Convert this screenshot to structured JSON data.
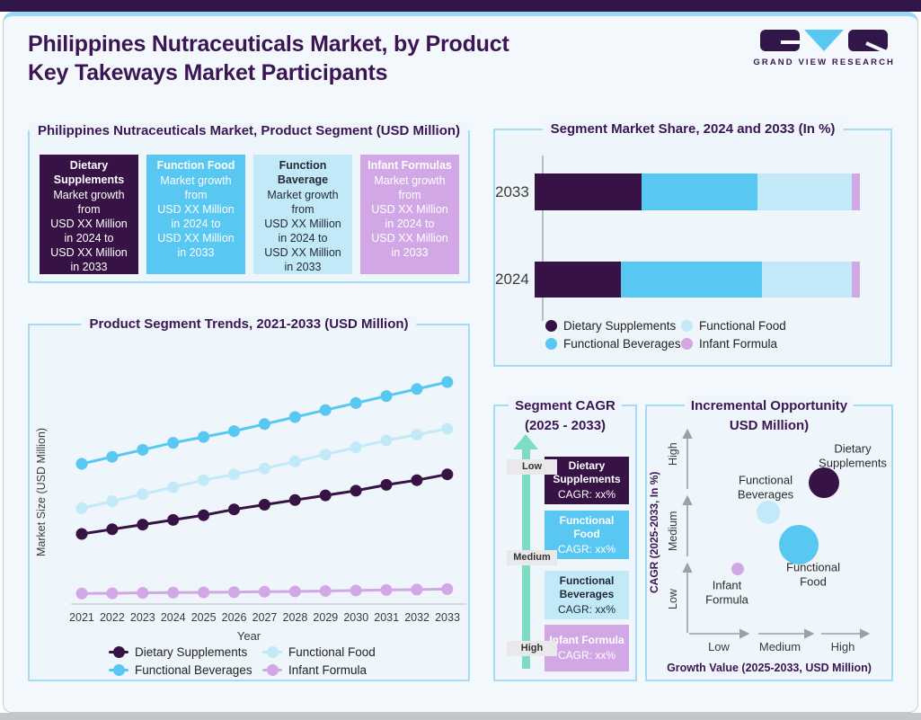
{
  "page": {
    "title_line1": "Philippines Nutraceuticals Market, by Product",
    "title_line2": "Key Takeways Market Participants",
    "logo_text": "GRAND VIEW RESEARCH"
  },
  "colors": {
    "dark_purple": "#361245",
    "blue": "#58c7f1",
    "light_blue": "#c2e9f8",
    "light_purple": "#d2a7e5",
    "teal": "#7edcc4",
    "heading_purple": "#3b1653",
    "panel_border": "#a5dcf4"
  },
  "segment_panel": {
    "title": "Philippines Nutraceuticals Market, Product Segment (USD Million)",
    "boxes": [
      {
        "name": "Dietary\nSupplements",
        "body": "Market growth\nfrom\nUSD XX Million\nin 2024 to\nUSD XX Million\nin 2033",
        "color_key": "dark_purple"
      },
      {
        "name": "Function Food",
        "body": "Market growth\nfrom\nUSD XX Million\nin 2024 to\nUSD XX Million\nin 2033",
        "color_key": "blue"
      },
      {
        "name": "Function Baverage",
        "body": "Market growth\nfrom\nUSD XX Million\nin 2024 to\nUSD XX Million\nin 2033",
        "color_key": "light_blue"
      },
      {
        "name": "Infant Formulas",
        "body": "Market growth\nfrom\nUSD XX Million\nin 2024 to\nUSD XX Million\nin 2033",
        "color_key": "light_purple"
      }
    ]
  },
  "trends_panel": {
    "title": "Product Segment Trends, 2021-2033 (USD Million)"
  },
  "share_panel": {
    "title": "Segment Market Share, 2024 and 2033 (In %)"
  },
  "cagr_panel": {
    "title_line1": "Segment CAGR",
    "title_line2": "(2025 - 2033)",
    "axis_labels": [
      "Low",
      "Medium",
      "High"
    ],
    "boxes": [
      {
        "name": "Dietary\nSupplements",
        "cagr": "CAGR: xx%",
        "color_key": "dark_purple"
      },
      {
        "name": "Functional\nFood",
        "cagr": "CAGR: xx%",
        "color_key": "blue"
      },
      {
        "name": "Functional\nBeverages",
        "cagr": "CAGR: xx%",
        "color_key": "light_blue"
      },
      {
        "name": "Infant Formula",
        "cagr": "CAGR: xx%",
        "color_key": "light_purple"
      }
    ]
  },
  "opportunity_panel": {
    "title_line1": "Incremental Opportunity",
    "title_line2": "USD Million)",
    "xlabel": "Growth Value (2025-2033, USD Million)",
    "ylabel": "CAGR (2025-2033, In %)",
    "x_zone_labels": [
      "Low",
      "Medium",
      "High"
    ],
    "y_zone_labels": [
      "Low",
      "Medium",
      "High"
    ]
  },
  "chart_data": [
    {
      "id": "trends",
      "type": "line",
      "title": "Product Segment Trends, 2021-2033 (USD Million)",
      "xlabel": "Year",
      "ylabel": "Market Size (USD Million)",
      "categories": [
        "2021",
        "2022",
        "2023",
        "2024",
        "2025",
        "2026",
        "2027",
        "2028",
        "2029",
        "2030",
        "2031",
        "2032",
        "2033"
      ],
      "ylim": [
        0,
        100
      ],
      "grid": false,
      "legend_position": "bottom",
      "series": [
        {
          "name": "Dietary Supplements",
          "color": "#361245",
          "values": [
            30,
            32,
            34,
            36,
            38,
            40.5,
            42.5,
            44.5,
            46.5,
            48.5,
            51,
            53,
            55.5
          ]
        },
        {
          "name": "Functional Food",
          "color": "#c2e9f8",
          "values": [
            41,
            44,
            47,
            50,
            53,
            55.5,
            58,
            61,
            64,
            67,
            70,
            72.5,
            75
          ]
        },
        {
          "name": "Functional Beverages",
          "color": "#58c7f1",
          "values": [
            60,
            63,
            66,
            69,
            71.5,
            74,
            77,
            80,
            83,
            86,
            89,
            92,
            95
          ]
        },
        {
          "name": "Infant Formula",
          "color": "#d2a7e5",
          "values": [
            4.5,
            4.6,
            4.8,
            4.9,
            5,
            5.1,
            5.3,
            5.4,
            5.6,
            5.8,
            6,
            6.2,
            6.4
          ]
        }
      ]
    },
    {
      "id": "share",
      "type": "bar",
      "orientation": "horizontal-stacked",
      "title": "Segment Market Share, 2024 and 2033 (In %)",
      "categories": [
        "2033",
        "2024"
      ],
      "xlim": [
        0,
        100
      ],
      "legend_position": "bottom",
      "series": [
        {
          "name": "Dietary Supplements",
          "color": "#361245",
          "values": [
            33,
            26.5
          ]
        },
        {
          "name": "Functional Beverages",
          "color": "#58c7f1",
          "values": [
            35.5,
            43.5
          ]
        },
        {
          "name": "Functional Food",
          "color": "#c2e9f8",
          "values": [
            29,
            27.5
          ]
        },
        {
          "name": "Infant Formula",
          "color": "#d2a7e5",
          "values": [
            2.5,
            2.5
          ]
        }
      ]
    },
    {
      "id": "opportunity",
      "type": "scatter",
      "title": "Incremental Opportunity USD Million)",
      "xlabel": "Growth Value (2025-2033, USD Million)",
      "ylabel": "CAGR (2025-2033, In %)",
      "axis_scale_note": "qualitative axes Low/Medium/High mapped to 0-3",
      "points": [
        {
          "label": "Dietary Supplements",
          "x": 2.22,
          "y": 2.2,
          "r": 17,
          "color": "#361245"
        },
        {
          "label": "Functional Beverages",
          "x": 1.32,
          "y": 1.77,
          "r": 13,
          "color": "#c2e9f8"
        },
        {
          "label": "Functional Food",
          "x": 1.82,
          "y": 1.3,
          "r": 22,
          "color": "#58c7f1"
        },
        {
          "label": "Infant Formula",
          "x": 0.82,
          "y": 0.95,
          "r": 7,
          "color": "#d2a7e5"
        }
      ]
    }
  ]
}
